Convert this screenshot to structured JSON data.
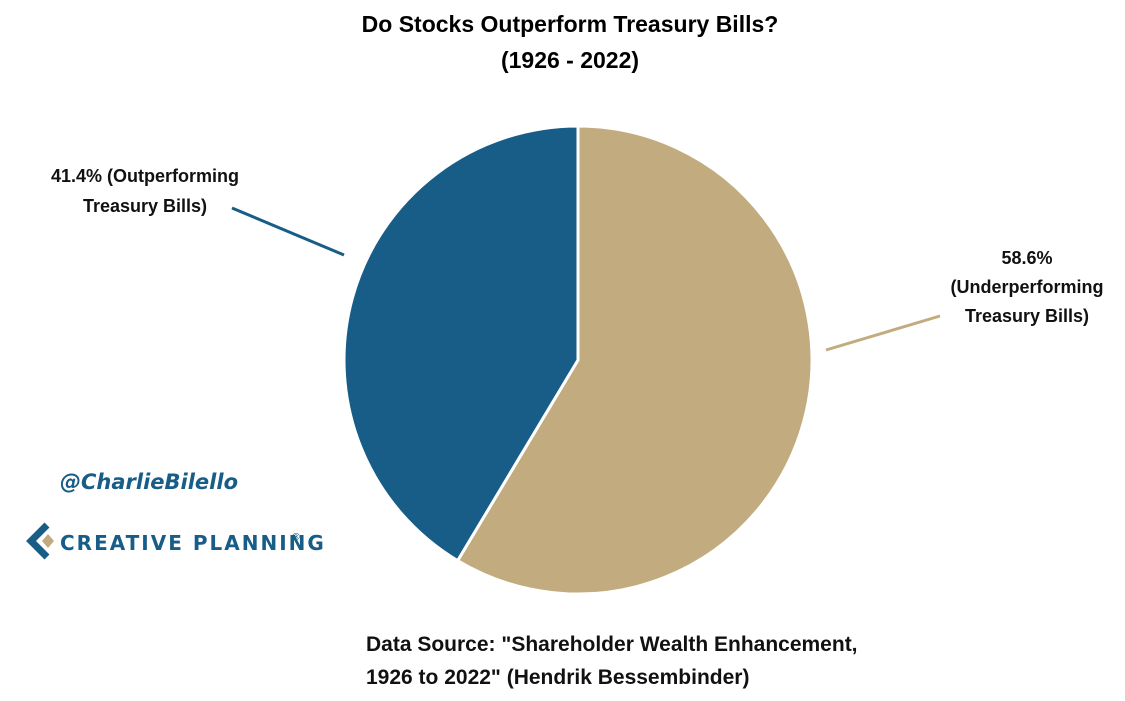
{
  "chart_data": {
    "type": "pie",
    "title": [
      "Do Stocks Outperform Treasury Bills?",
      "(1926 - 2022)"
    ],
    "slices": [
      {
        "name": "Underperforming Treasury Bills",
        "value": 58.6,
        "color": "#c2ab7f",
        "label_lines": [
          "58.6%",
          "(Underperforming",
          "Treasury Bills)"
        ]
      },
      {
        "name": "Outperforming Treasury Bills",
        "value": 41.4,
        "color": "#175d87",
        "label_lines": [
          "41.4% (Outperforming",
          "Treasury Bills)"
        ]
      }
    ],
    "source_lines": [
      "Data Source: \"Shareholder Wealth Enhancement,",
      "1926 to 2022\" (Hendrik Bessembinder)"
    ]
  },
  "branding": {
    "handle": "@CharlieBilello",
    "logo_text": "CREATIVE PLANNING",
    "logo_mark": "®",
    "color": "#175d87",
    "accent": "#c2ab7f"
  }
}
